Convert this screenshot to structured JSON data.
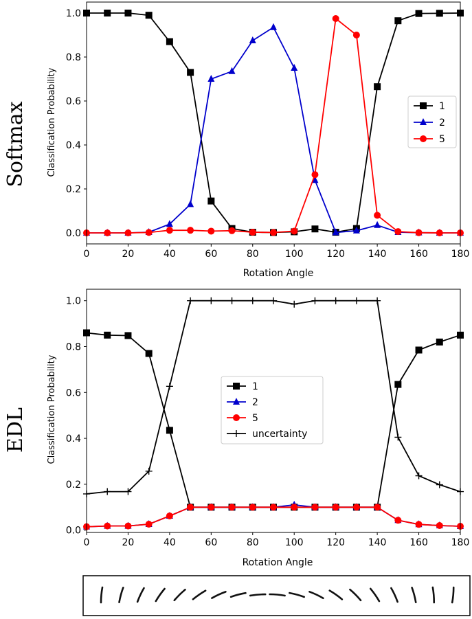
{
  "chart_data": [
    {
      "type": "line",
      "row_label": "Softmax",
      "title": "",
      "xlabel": "Rotation Angle",
      "ylabel": "Classification Probability",
      "xlim": [
        0,
        180
      ],
      "ylim": [
        -0.05,
        1.05
      ],
      "xticks": [
        0,
        20,
        40,
        60,
        80,
        100,
        120,
        140,
        160,
        180
      ],
      "yticks": [
        0.0,
        0.2,
        0.4,
        0.6,
        0.8,
        1.0
      ],
      "legend_position": "center-right",
      "x": [
        0,
        10,
        20,
        30,
        40,
        50,
        60,
        70,
        80,
        90,
        100,
        110,
        120,
        130,
        140,
        150,
        160,
        170,
        180
      ],
      "series": [
        {
          "name": "1",
          "color": "#000000",
          "marker": "square",
          "values": [
            1.0,
            1.0,
            1.0,
            0.99,
            0.87,
            0.73,
            0.145,
            0.02,
            0.003,
            0.002,
            0.005,
            0.018,
            0.003,
            0.02,
            0.665,
            0.965,
            0.998,
            0.999,
            1.0
          ]
        },
        {
          "name": "2",
          "color": "#0000cc",
          "marker": "triangle",
          "values": [
            0.0,
            0.0,
            0.0,
            0.003,
            0.04,
            0.13,
            0.7,
            0.735,
            0.875,
            0.935,
            0.75,
            0.24,
            0.002,
            0.01,
            0.035,
            0.003,
            0.001,
            0.0,
            0.0
          ]
        },
        {
          "name": "5",
          "color": "#ff0000",
          "marker": "circle",
          "values": [
            0.0,
            0.0,
            0.0,
            0.002,
            0.012,
            0.012,
            0.008,
            0.01,
            0.003,
            0.002,
            0.008,
            0.265,
            0.975,
            0.9,
            0.08,
            0.006,
            0.001,
            0.0,
            0.0
          ]
        }
      ]
    },
    {
      "type": "line",
      "row_label": "EDL",
      "title": "",
      "xlabel": "Rotation Angle",
      "ylabel": "Classification Probability",
      "xlim": [
        0,
        180
      ],
      "ylim": [
        -0.01,
        1.05
      ],
      "xticks": [
        0,
        20,
        40,
        60,
        80,
        100,
        120,
        140,
        160,
        180
      ],
      "yticks": [
        0.0,
        0.2,
        0.4,
        0.6,
        0.8,
        1.0
      ],
      "legend_position": "center",
      "x": [
        0,
        10,
        20,
        30,
        40,
        50,
        60,
        70,
        80,
        90,
        100,
        110,
        120,
        130,
        140,
        150,
        160,
        170,
        180
      ],
      "series": [
        {
          "name": "1",
          "color": "#000000",
          "marker": "square",
          "values": [
            0.86,
            0.85,
            0.848,
            0.77,
            0.435,
            0.1,
            0.1,
            0.1,
            0.1,
            0.1,
            0.1,
            0.1,
            0.1,
            0.1,
            0.1,
            0.635,
            0.785,
            0.82,
            0.85
          ]
        },
        {
          "name": "2",
          "color": "#0000cc",
          "marker": "triangle",
          "values": [
            0.015,
            0.018,
            0.018,
            0.026,
            0.062,
            0.1,
            0.1,
            0.1,
            0.1,
            0.1,
            0.11,
            0.1,
            0.1,
            0.1,
            0.1,
            0.043,
            0.025,
            0.02,
            0.017
          ]
        },
        {
          "name": "5",
          "color": "#ff0000",
          "marker": "circle",
          "values": [
            0.015,
            0.018,
            0.018,
            0.026,
            0.062,
            0.1,
            0.1,
            0.1,
            0.1,
            0.1,
            0.1,
            0.1,
            0.1,
            0.1,
            0.1,
            0.043,
            0.025,
            0.02,
            0.017
          ]
        },
        {
          "name": "uncertainty",
          "color": "#000000",
          "marker": "plus",
          "values": [
            0.158,
            0.168,
            0.168,
            0.257,
            0.627,
            1.0,
            1.0,
            1.0,
            1.0,
            1.0,
            0.985,
            1.0,
            1.0,
            1.0,
            1.0,
            0.405,
            0.237,
            0.198,
            0.168
          ]
        }
      ]
    }
  ],
  "digit_strip": {
    "description_label": "rotated digit 1 sequence",
    "angles": [
      0,
      10,
      20,
      30,
      40,
      50,
      60,
      70,
      80,
      90,
      100,
      110,
      120,
      130,
      140,
      150,
      160,
      170,
      180
    ]
  }
}
